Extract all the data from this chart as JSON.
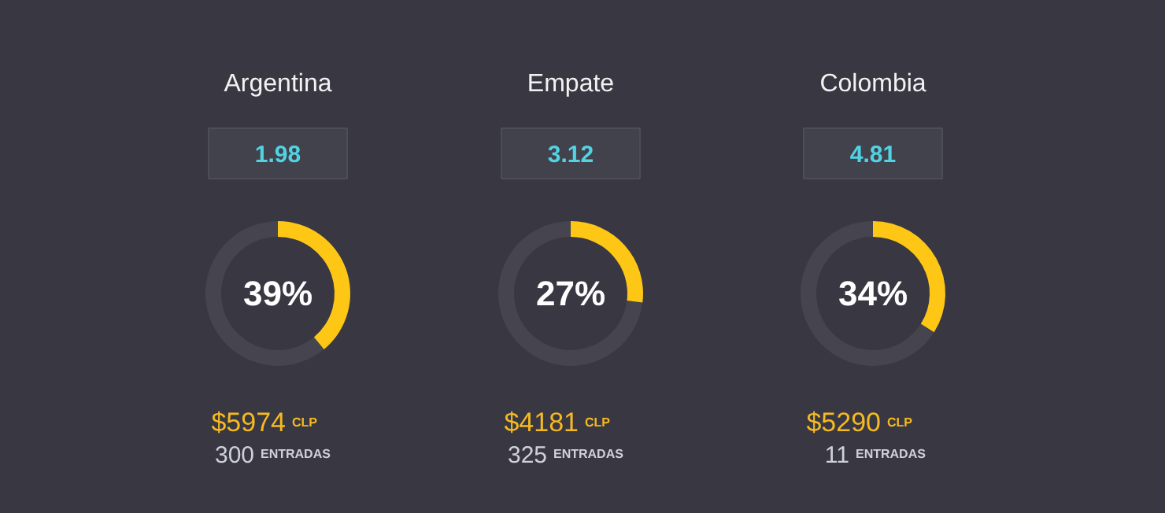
{
  "chart_data": [
    {
      "type": "donut",
      "title": "Argentina",
      "categories": [
        null,
        null
      ],
      "values": [
        39,
        61
      ],
      "colors": [
        "#fec715",
        "#45444f"
      ],
      "value_labels": [
        "39%",
        null
      ],
      "annotations": [
        "1.98",
        "$5974",
        "CLP",
        "300",
        "ENTRADAS"
      ]
    },
    {
      "type": "donut",
      "title": "Empate",
      "categories": [
        null,
        null
      ],
      "values": [
        27,
        73
      ],
      "colors": [
        "#fec715",
        "#45444f"
      ],
      "value_labels": [
        "27%",
        null
      ],
      "annotations": [
        "3.12",
        "$4181",
        "CLP",
        "325",
        "ENTRADAS"
      ]
    },
    {
      "type": "donut",
      "title": "Colombia",
      "categories": [
        null,
        null
      ],
      "values": [
        34,
        66
      ],
      "colors": [
        "#fec715",
        "#45444f"
      ],
      "value_labels": [
        "34%",
        null
      ],
      "annotations": [
        "4.81",
        "$5290",
        "CLP",
        "11",
        "ENTRADAS"
      ]
    }
  ]
}
